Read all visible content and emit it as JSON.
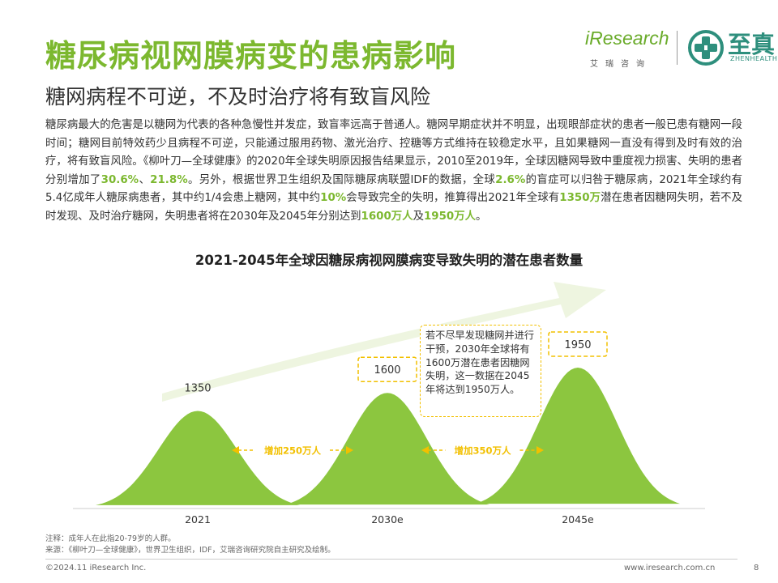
{
  "header": {
    "title": "糖尿病视网膜病变的患病影响",
    "subtitle": "糖网病程不可逆，不及时治疗将有致盲风险"
  },
  "logos": {
    "iresearch": "iResearch",
    "iresearch_cn": "艾瑞咨询",
    "zhenhealth_cn": "至真",
    "zhenhealth_en": "ZHENHEALTH"
  },
  "body": {
    "p1": "糖尿病最大的危害是以糖网为代表的各种急慢性并发症，致盲率远高于普通人。糖网早期症状并不明显，出现眼部症状的患者一般已患有糖网一段时间；糖网目前特效药少且病程不可逆，只能通过服用药物、激光治疗、控糖等方式维持在较稳定水平，且如果糖网一直没有得到及时有效的治疗，将有致盲风险。《柳叶刀—全球健康》的2020年全球失明原因报告结果显示，2010至2019年，全球因糖网导致中重度视力损害、失明的患者分别增加了",
    "h1": "30.6%",
    "s1": "、",
    "h2": "21.8%",
    "p2": "。另外，根据世界卫生组织及国际糖尿病联盟IDF的数据，全球",
    "h3": "2.6%",
    "p3": "的盲症可以归咎于糖尿病，2021年全球约有5.4亿成年人糖尿病患者，其中约1/4会患上糖网，其中约",
    "h4": "10%",
    "p4": "会导致完全的失明，推算得出2021年全球有",
    "h5": "1350万",
    "p5": "潜在患者因糖网失明，若不及时发现、及时治疗糖网，失明患者将在2030年及2045年分别达到",
    "h6": "1600万人",
    "p6": "及",
    "h7": "1950万人",
    "p7": "。"
  },
  "chart_data": {
    "type": "area",
    "title": "2021-2045年全球因糖尿病视网膜病变导致失明的潜在患者数量",
    "categories": [
      "2021",
      "2030e",
      "2045e"
    ],
    "values": [
      1350,
      1600,
      1950
    ],
    "value_labels": [
      "1350",
      "1600",
      "1950"
    ],
    "increments": [
      "增加250万人",
      "增加350万人"
    ],
    "annotation": "若不尽早发现糖网并进行干预，2030年全球将有1600万潜在患者因糖网失明，这一数据在2045年将达到1950万人。",
    "colors": {
      "peak": "#8cc63f",
      "accent": "#7cb82f",
      "arrow": "#eef5e0",
      "callout": "#f2c000"
    }
  },
  "footer": {
    "note": "注释：成年人在此指20-79岁的人群。",
    "source": "来源：《柳叶刀—全球健康》，世界卫生组织，IDF，艾瑞咨询研究院自主研究及绘制。",
    "copyright": "©2024.11 iResearch Inc.",
    "website": "www.iresearch.com.cn",
    "page": "8"
  }
}
